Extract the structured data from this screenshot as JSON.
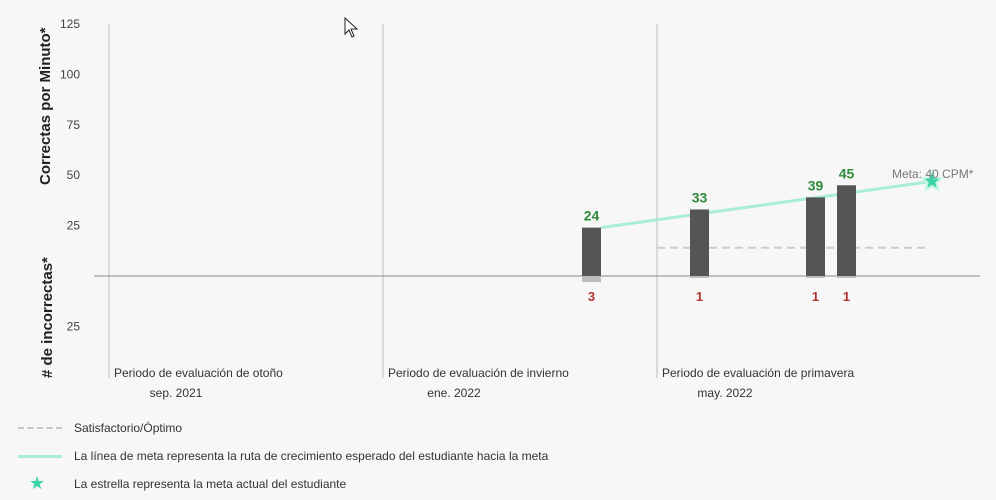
{
  "chart_data": {
    "type": "bar",
    "ylabel_top": "Correctas por Minuto*",
    "ylabel_bottom": "# de incorrectas*",
    "y_top_ticks": [
      "125",
      "100",
      "75",
      "50",
      "25"
    ],
    "y_top_range": [
      0,
      125
    ],
    "y_bottom_ticks": [
      "25"
    ],
    "periods": [
      {
        "label": "Periodo de evaluación de otoño",
        "date": "sep. 2021"
      },
      {
        "label": "Periodo de evaluación de invierno",
        "date": "ene. 2022"
      },
      {
        "label": "Periodo de evaluación de primavera",
        "date": "may. 2022"
      }
    ],
    "correct_bars": [
      {
        "value": 24,
        "label": "24"
      },
      {
        "value": 33,
        "label": "33"
      },
      {
        "value": 39,
        "label": "39"
      },
      {
        "value": 45,
        "label": "45"
      }
    ],
    "incorrect_values": [
      {
        "value": 3,
        "label": "3"
      },
      {
        "value": 1,
        "label": "1"
      },
      {
        "value": 1,
        "label": "1"
      },
      {
        "value": 1,
        "label": "1"
      }
    ],
    "goal": {
      "value": 40,
      "label": "Meta: 40 CPM*"
    },
    "benchmark": {
      "value": 14
    },
    "colors": {
      "bar": "#555555",
      "incorrect_bar": "#bdbdbd",
      "goal_line": "#a8ecd9",
      "star": "#3fd3a8",
      "benchmark": "#cccccc",
      "correct_text": "#2e8b3a",
      "incorrect_text": "#b3322e"
    }
  },
  "legend": {
    "satisfactory": "Satisfactorio/Óptimo",
    "goal_line": "La línea de meta representa la ruta de crecimiento esperado del estudiante hacia la meta",
    "star": "La estrella representa la meta actual del estudiante"
  },
  "icons": {
    "cursor": "arrow-cursor-icon",
    "goal_star": "star-icon"
  }
}
